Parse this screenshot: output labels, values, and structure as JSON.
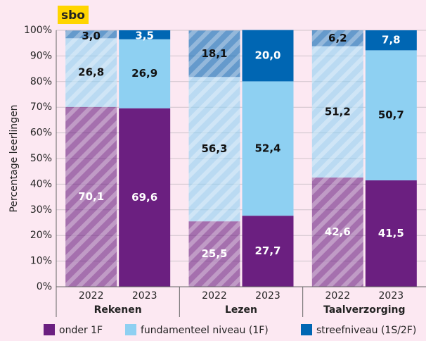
{
  "chart_data": {
    "type": "stacked_bar",
    "badge": "sbo",
    "ylabel": "Percentage leerlingen",
    "categories": [
      "2022",
      "2023",
      "2022",
      "2023",
      "2022",
      "2023"
    ],
    "groups": [
      "Rekenen",
      "Lezen",
      "Taalverzorging"
    ],
    "hatched": [
      true,
      false,
      true,
      false,
      true,
      false
    ],
    "series": [
      {
        "name": "onder 1F",
        "color": "#6b1f80",
        "values": [
          70.1,
          69.6,
          25.5,
          27.7,
          42.6,
          41.5
        ],
        "value_labels": [
          "70,1",
          "69,6",
          "25,5",
          "27,7",
          "42,6",
          "41,5"
        ]
      },
      {
        "name": "fundamenteel niveau (1F)",
        "color": "#8ed0f2",
        "values": [
          26.8,
          26.9,
          56.3,
          52.4,
          51.2,
          50.7
        ],
        "value_labels": [
          "26,8",
          "26,9",
          "56,3",
          "52,4",
          "51,2",
          "50,7"
        ]
      },
      {
        "name": "streefniveau (1S/2F)",
        "color": "#0066b3",
        "values": [
          3.0,
          3.5,
          18.1,
          20.0,
          6.2,
          7.8
        ],
        "value_labels": [
          "3,0",
          "3,5",
          "18,1",
          "20,0",
          "6,2",
          "7,8"
        ]
      }
    ],
    "ylim": [
      0,
      100
    ],
    "yticks": [
      {
        "value": 0,
        "label": "0%"
      },
      {
        "value": 10,
        "label": "10%"
      },
      {
        "value": 20,
        "label": "20%"
      },
      {
        "value": 30,
        "label": "30%"
      },
      {
        "value": 40,
        "label": "40%"
      },
      {
        "value": 50,
        "label": "50%"
      },
      {
        "value": 60,
        "label": "60%"
      },
      {
        "value": 70,
        "label": "70%"
      },
      {
        "value": 80,
        "label": "80%"
      },
      {
        "value": 90,
        "label": "90%"
      },
      {
        "value": 100,
        "label": "100%"
      }
    ],
    "grid": true
  }
}
